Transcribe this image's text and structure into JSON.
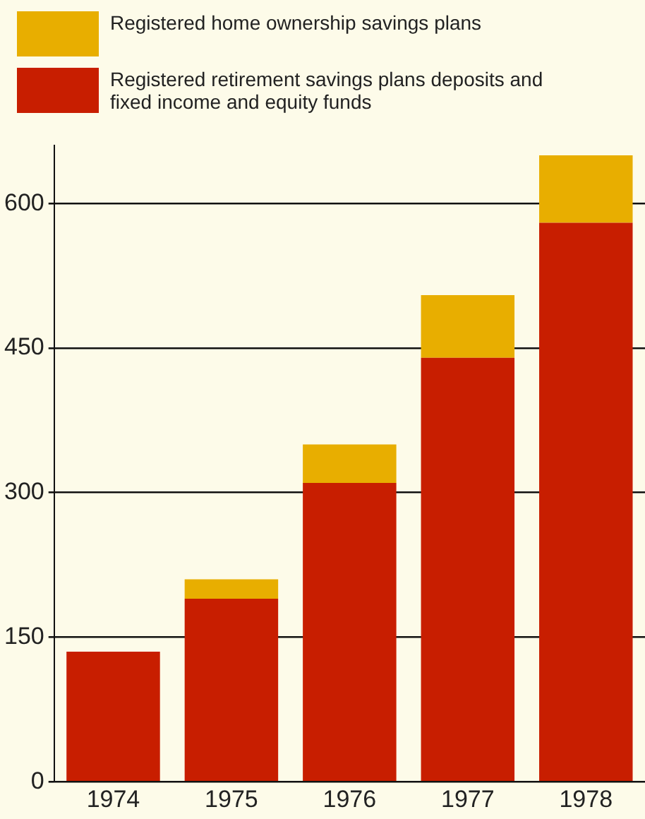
{
  "chart_data": {
    "type": "bar",
    "stacked": true,
    "legend": "top left",
    "grid": "y",
    "categories": [
      "1974",
      "1975",
      "1976",
      "1977",
      "1978"
    ],
    "ylim": [
      0,
      660
    ],
    "yticks": [
      0,
      150,
      300,
      450,
      600
    ],
    "series": [
      {
        "name": "Registered retirement savings plans deposits and fixed income and equity funds",
        "color": "#c81e00",
        "values": [
          135,
          190,
          310,
          440,
          580
        ]
      },
      {
        "name": "Registered home ownership savings plans",
        "color": "#e8ae00",
        "values": [
          0,
          20,
          40,
          65,
          70
        ]
      }
    ]
  }
}
